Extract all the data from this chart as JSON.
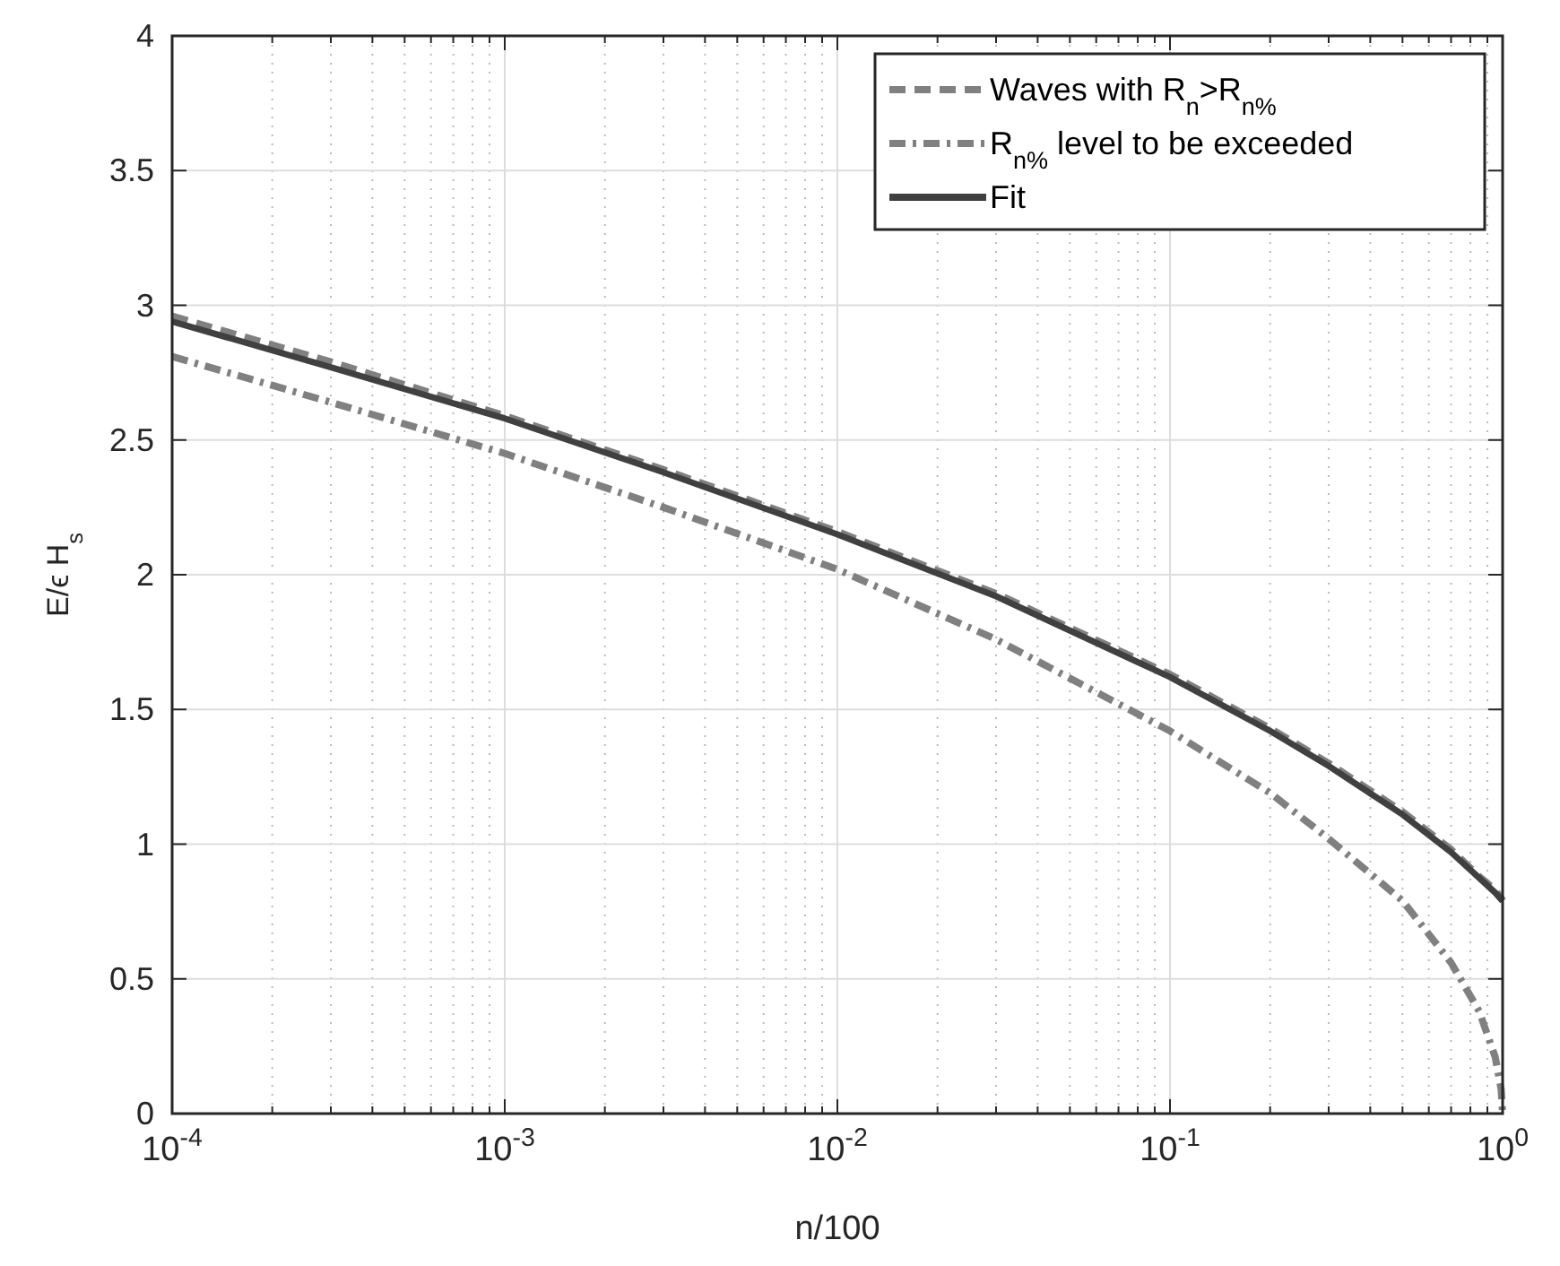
{
  "chart_data": {
    "type": "line",
    "xlabel": "n/100",
    "ylabel": "E/ϵ H$_{s}$",
    "log": "x",
    "xlim": [
      0.0001,
      1
    ],
    "ylim": [
      0,
      4
    ],
    "xticks": [
      {
        "value": 0.0001,
        "label": "10$^{-4}$"
      },
      {
        "value": 0.001,
        "label": "10$^{-3}$"
      },
      {
        "value": 0.01,
        "label": "10$^{-2}$"
      },
      {
        "value": 0.1,
        "label": "10$^{-1}$"
      },
      {
        "value": 1,
        "label": "10$^{0}$"
      }
    ],
    "yticks": [
      0,
      0.5,
      1,
      1.5,
      2,
      2.5,
      3,
      3.5,
      4
    ],
    "grid": true,
    "legend": "top right",
    "x": [
      0.0001,
      0.0003,
      0.001,
      0.003,
      0.01,
      0.03,
      0.1,
      0.2,
      0.3,
      0.5,
      0.7,
      0.85,
      0.95,
      0.99,
      1
    ],
    "series": [
      {
        "name": "Waves with R$_{n}$>R$_{n%}$",
        "color": "#808080",
        "line_style": "dashed",
        "values": [
          2.96,
          2.79,
          2.59,
          2.39,
          2.16,
          1.93,
          1.63,
          1.43,
          1.3,
          1.12,
          0.98,
          0.88,
          0.83,
          0.8,
          0.79
        ]
      },
      {
        "name": "R$_{n%}$ level to be exceeded",
        "color": "#808080",
        "line_style": "dashdot",
        "values": [
          2.81,
          2.64,
          2.45,
          2.25,
          2.02,
          1.76,
          1.42,
          1.19,
          1.02,
          0.79,
          0.56,
          0.38,
          0.21,
          0.09,
          0
        ]
      },
      {
        "name": "Fit",
        "color": "#404040",
        "line_style": "solid",
        "values": [
          2.94,
          2.77,
          2.58,
          2.38,
          2.15,
          1.92,
          1.62,
          1.42,
          1.29,
          1.11,
          0.97,
          0.875,
          0.82,
          0.795,
          0.79
        ]
      }
    ]
  }
}
